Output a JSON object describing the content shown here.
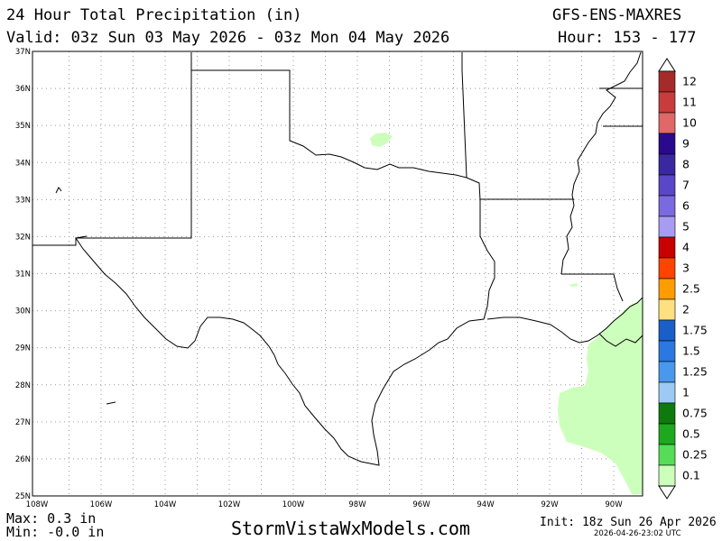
{
  "header": {
    "title": "24 Hour Total Precipitation (in)",
    "model": "GFS-ENS-MAXRES",
    "valid": "Valid: 03z Sun 03 May 2026 - 03z Mon 04 May 2026",
    "hours": "Hour: 153 - 177"
  },
  "footer": {
    "max": "Max: 0.3 in",
    "min": "Min: -0.0 in",
    "brand": "StormVistaWxModels.com",
    "init": "Init: 18z Sun 26 Apr 2026",
    "stamp": "2026-04-26-23:02 UTC"
  },
  "map": {
    "lat_labels": [
      "37N",
      "36N",
      "35N",
      "34N",
      "33N",
      "32N",
      "31N",
      "30N",
      "29N",
      "28N",
      "27N",
      "26N",
      "25N"
    ],
    "lon_labels": [
      "108W",
      "106W",
      "104W",
      "102W",
      "100W",
      "98W",
      "96W",
      "94W",
      "92W",
      "90W"
    ],
    "precip_color": "#ccffbb",
    "border_color": "#000000",
    "grid_color": "#999999"
  },
  "colorbar": {
    "levels": [
      {
        "label": "12",
        "color": "#a52a2a"
      },
      {
        "label": "11",
        "color": "#c83c3c"
      },
      {
        "label": "10",
        "color": "#e06868"
      },
      {
        "label": "9",
        "color": "#2a0a8c"
      },
      {
        "label": "8",
        "color": "#3a28a0"
      },
      {
        "label": "7",
        "color": "#5a46c8"
      },
      {
        "label": "6",
        "color": "#7a6ae0"
      },
      {
        "label": "5",
        "color": "#a89cf2"
      },
      {
        "label": "4",
        "color": "#c80000"
      },
      {
        "label": "3",
        "color": "#ff4400"
      },
      {
        "label": "2.5",
        "color": "#ff9c00"
      },
      {
        "label": "2",
        "color": "#ffe080"
      },
      {
        "label": "1.75",
        "color": "#1a5ec8"
      },
      {
        "label": "1.5",
        "color": "#2a78e0"
      },
      {
        "label": "1.25",
        "color": "#4a98ee"
      },
      {
        "label": "1",
        "color": "#9ccaf4"
      },
      {
        "label": "0.75",
        "color": "#0e7a0e"
      },
      {
        "label": "0.5",
        "color": "#1ea81e"
      },
      {
        "label": "0.25",
        "color": "#56dc56"
      },
      {
        "label": "0.1",
        "color": "#ccffbb"
      }
    ]
  }
}
